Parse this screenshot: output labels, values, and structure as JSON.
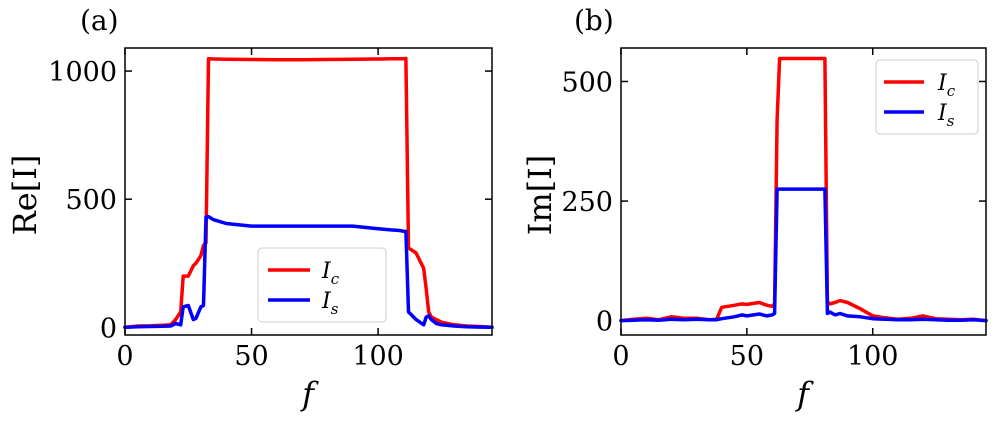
{
  "chart_data": [
    {
      "type": "line",
      "panel_label": "(a)",
      "xlabel": "f",
      "ylabel": "Re[I]",
      "xlim": [
        0,
        145
      ],
      "ylim": [
        -30,
        1090
      ],
      "xticks": [
        0,
        50,
        100
      ],
      "yticks": [
        0,
        500,
        1000
      ],
      "legend_location": "lower-center",
      "x": [
        0,
        5,
        10,
        15,
        18,
        20,
        22,
        23,
        25,
        27,
        28,
        30,
        31,
        32,
        33,
        35,
        40,
        50,
        60,
        70,
        80,
        90,
        100,
        105,
        108,
        110,
        111,
        112,
        115,
        118,
        119,
        120,
        121,
        123,
        125,
        130,
        135,
        140,
        145
      ],
      "series": [
        {
          "name": "I",
          "subscript": "c",
          "color": "#ff0000",
          "values": [
            0,
            5,
            6,
            8,
            10,
            30,
            60,
            200,
            200,
            240,
            250,
            280,
            320,
            330,
            1048,
            1047,
            1046,
            1045,
            1044,
            1044,
            1045,
            1046,
            1047,
            1048,
            1048,
            1048,
            1049,
            310,
            290,
            230,
            150,
            60,
            40,
            30,
            20,
            10,
            5,
            3,
            0
          ]
        },
        {
          "name": "I",
          "subscript": "s",
          "color": "#0000ff",
          "values": [
            0,
            2,
            3,
            4,
            5,
            15,
            10,
            80,
            85,
            30,
            35,
            80,
            85,
            430,
            432,
            420,
            405,
            395,
            395,
            395,
            395,
            395,
            385,
            380,
            378,
            375,
            374,
            60,
            30,
            10,
            40,
            45,
            30,
            15,
            10,
            5,
            2,
            1,
            0
          ]
        }
      ]
    },
    {
      "type": "line",
      "panel_label": "(b)",
      "xlabel": "f",
      "ylabel": "Im[I]",
      "xlim": [
        0,
        145
      ],
      "ylim": [
        -30,
        570
      ],
      "xticks": [
        0,
        50,
        100
      ],
      "yticks": [
        0,
        250,
        500
      ],
      "legend_location": "top-right",
      "x": [
        0,
        5,
        10,
        15,
        20,
        25,
        30,
        35,
        38,
        40,
        45,
        48,
        50,
        55,
        58,
        60,
        61,
        62,
        63,
        65,
        70,
        75,
        80,
        81,
        82,
        83,
        85,
        87,
        90,
        95,
        100,
        105,
        110,
        115,
        120,
        125,
        130,
        135,
        140,
        145
      ],
      "series": [
        {
          "name": "I",
          "subscript": "c",
          "color": "#ff0000",
          "values": [
            0,
            3,
            5,
            2,
            8,
            5,
            5,
            2,
            3,
            28,
            32,
            35,
            34,
            38,
            32,
            30,
            35,
            420,
            548,
            548,
            548,
            548,
            548,
            548,
            40,
            35,
            38,
            42,
            38,
            25,
            10,
            6,
            3,
            5,
            10,
            4,
            3,
            2,
            3,
            0
          ]
        },
        {
          "name": "I",
          "subscript": "s",
          "color": "#0000ff",
          "values": [
            0,
            1,
            2,
            1,
            3,
            2,
            3,
            2,
            2,
            4,
            8,
            12,
            10,
            14,
            10,
            12,
            15,
            275,
            275,
            275,
            275,
            275,
            275,
            275,
            15,
            18,
            12,
            15,
            10,
            8,
            4,
            3,
            2,
            2,
            3,
            2,
            1,
            1,
            2,
            0
          ]
        }
      ]
    }
  ]
}
